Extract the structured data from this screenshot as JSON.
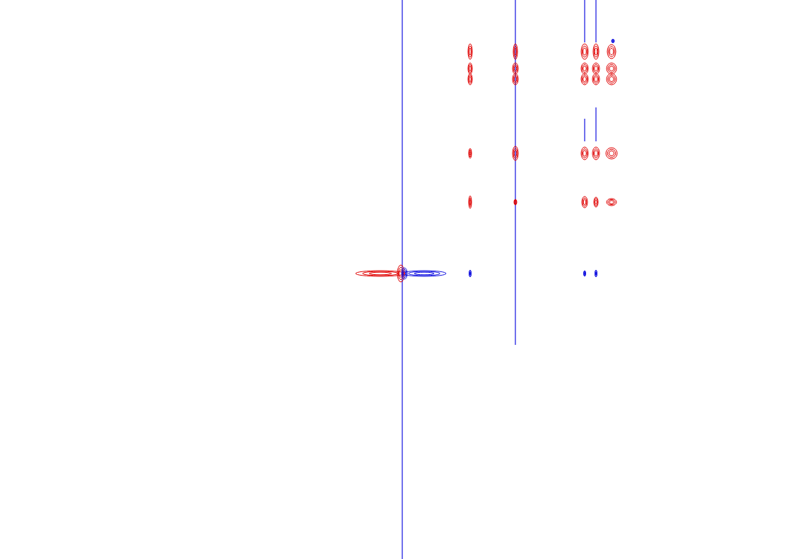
{
  "chart_data": {
    "type": "contour",
    "xlim": [
      0,
      1133
    ],
    "ylim": [
      791,
      0
    ],
    "tick_labels": false,
    "grid": false,
    "peaks": [
      {
        "x": 665,
        "y": 73,
        "width": 6,
        "height": 22,
        "color": "#e00000"
      },
      {
        "x": 729,
        "y": 73,
        "width": 6,
        "height": 22,
        "color": "#e00000"
      },
      {
        "x": 827,
        "y": 73,
        "width": 10,
        "height": 22,
        "color": "#e00000"
      },
      {
        "x": 843,
        "y": 73,
        "width": 8,
        "height": 22,
        "color": "#e00000"
      },
      {
        "x": 865,
        "y": 73,
        "width": 12,
        "height": 20,
        "color": "#e00000"
      },
      {
        "x": 665,
        "y": 97,
        "width": 6,
        "height": 16,
        "color": "#e00000"
      },
      {
        "x": 729,
        "y": 97,
        "width": 8,
        "height": 16,
        "color": "#e00000"
      },
      {
        "x": 827,
        "y": 97,
        "width": 10,
        "height": 16,
        "color": "#e00000"
      },
      {
        "x": 843,
        "y": 97,
        "width": 10,
        "height": 16,
        "color": "#e00000"
      },
      {
        "x": 865,
        "y": 97,
        "width": 14,
        "height": 16,
        "color": "#e00000"
      },
      {
        "x": 665,
        "y": 112,
        "width": 6,
        "height": 16,
        "color": "#e00000"
      },
      {
        "x": 729,
        "y": 112,
        "width": 8,
        "height": 16,
        "color": "#e00000"
      },
      {
        "x": 827,
        "y": 112,
        "width": 10,
        "height": 16,
        "color": "#e00000"
      },
      {
        "x": 843,
        "y": 112,
        "width": 10,
        "height": 16,
        "color": "#e00000"
      },
      {
        "x": 865,
        "y": 112,
        "width": 14,
        "height": 16,
        "color": "#e00000"
      },
      {
        "x": 665,
        "y": 217,
        "width": 4,
        "height": 14,
        "color": "#e00000"
      },
      {
        "x": 729,
        "y": 217,
        "width": 8,
        "height": 20,
        "color": "#e00000"
      },
      {
        "x": 827,
        "y": 217,
        "width": 10,
        "height": 18,
        "color": "#e00000"
      },
      {
        "x": 843,
        "y": 217,
        "width": 10,
        "height": 18,
        "color": "#e00000"
      },
      {
        "x": 865,
        "y": 217,
        "width": 16,
        "height": 16,
        "color": "#e00000"
      },
      {
        "x": 665,
        "y": 286,
        "width": 4,
        "height": 18,
        "color": "#e00000"
      },
      {
        "x": 729,
        "y": 286,
        "width": 4,
        "height": 8,
        "color": "#e00000"
      },
      {
        "x": 827,
        "y": 286,
        "width": 8,
        "height": 16,
        "color": "#e00000"
      },
      {
        "x": 843,
        "y": 286,
        "width": 6,
        "height": 14,
        "color": "#e00000"
      },
      {
        "x": 865,
        "y": 286,
        "width": 14,
        "height": 10,
        "color": "#e00000"
      },
      {
        "x": 538,
        "y": 387,
        "width": 70,
        "height": 8,
        "color": "#e00000"
      },
      {
        "x": 600,
        "y": 387,
        "width": 62,
        "height": 8,
        "color": "#1010e0"
      },
      {
        "x": 567,
        "y": 387,
        "width": 10,
        "height": 24,
        "color": "#e00000"
      },
      {
        "x": 572,
        "y": 387,
        "width": 8,
        "height": 16,
        "color": "#1010e0"
      },
      {
        "x": 665,
        "y": 387,
        "width": 3,
        "height": 10,
        "color": "#1010e0"
      },
      {
        "x": 827,
        "y": 387,
        "width": 3,
        "height": 8,
        "color": "#1010e0"
      },
      {
        "x": 843,
        "y": 387,
        "width": 3,
        "height": 10,
        "color": "#1010e0"
      },
      {
        "x": 867,
        "y": 58,
        "width": 4,
        "height": 5,
        "color": "#1010e0"
      }
    ],
    "streaks": [
      {
        "x": 569,
        "y0": 0,
        "y1": 791,
        "color": "#1010e0"
      },
      {
        "x": 729,
        "y0": 0,
        "y1": 488,
        "color": "#1010e0"
      },
      {
        "x": 827,
        "y0": 0,
        "y1": 60,
        "color": "#1010e0"
      },
      {
        "x": 843,
        "y0": 0,
        "y1": 60,
        "color": "#1010e0"
      },
      {
        "x": 827,
        "y0": 168,
        "y1": 200,
        "color": "#1010e0"
      },
      {
        "x": 843,
        "y0": 152,
        "y1": 200,
        "color": "#1010e0"
      }
    ]
  }
}
